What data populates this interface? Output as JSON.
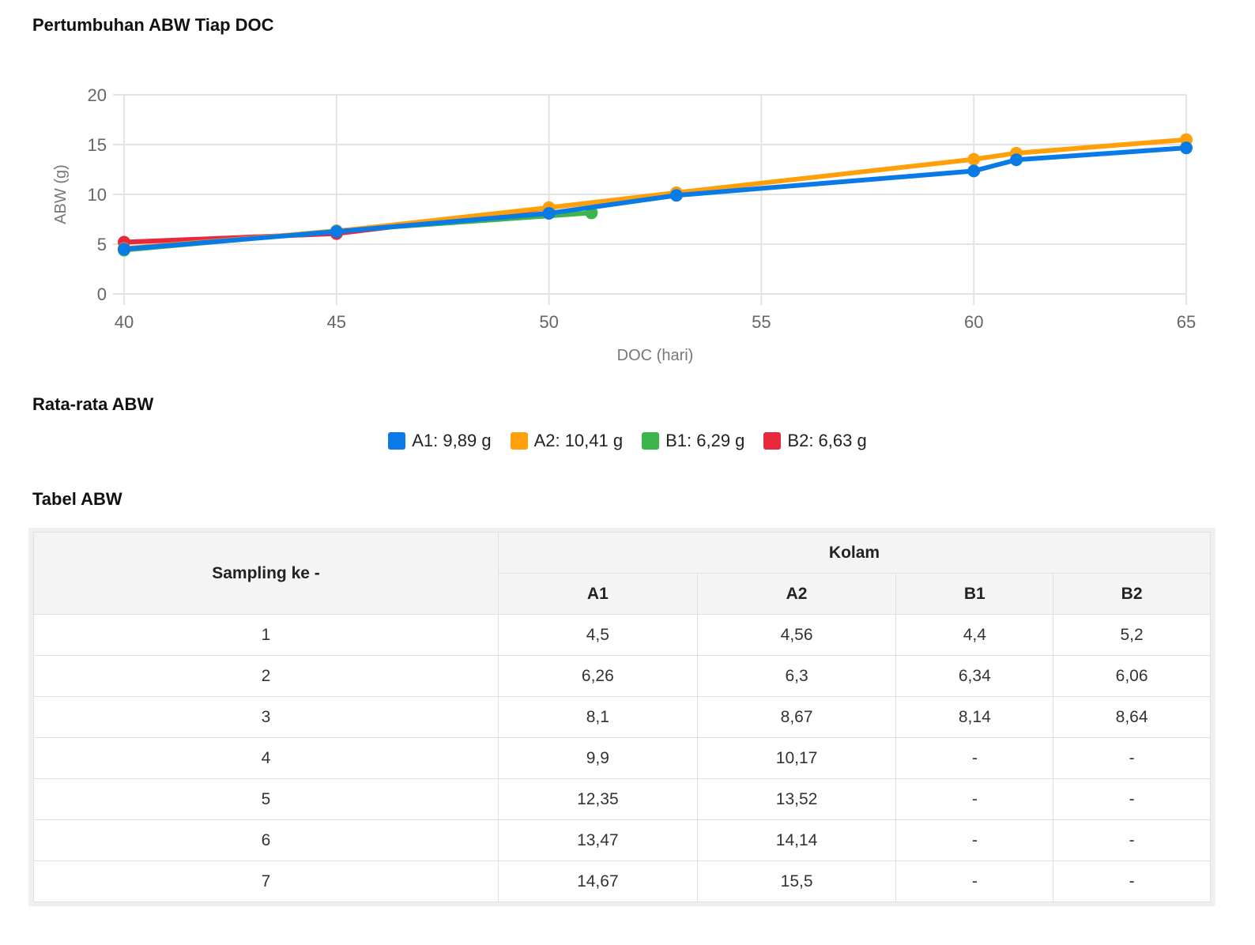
{
  "headings": {
    "chart": "Pertumbuhan ABW Tiap DOC",
    "avg": "Rata-rata ABW",
    "table": "Tabel ABW"
  },
  "chart_data": {
    "type": "line",
    "xlabel": "DOC (hari)",
    "ylabel": "ABW (g)",
    "xlim": [
      40,
      65
    ],
    "ylim": [
      0,
      20
    ],
    "xticks": [
      40,
      45,
      50,
      55,
      60,
      65
    ],
    "yticks": [
      0,
      5,
      10,
      15,
      20
    ],
    "grid": true,
    "series": [
      {
        "name": "B2",
        "color": "#e8283c",
        "x": [
          40,
          45,
          50
        ],
        "y": [
          5.2,
          6.06,
          8.64
        ]
      },
      {
        "name": "B1",
        "color": "#3cb54a",
        "x": [
          40,
          45,
          51
        ],
        "y": [
          4.4,
          6.34,
          8.14
        ]
      },
      {
        "name": "A2",
        "color": "#ff9f0a",
        "x": [
          40,
          45,
          50,
          53,
          60,
          61,
          65
        ],
        "y": [
          4.56,
          6.3,
          8.67,
          10.17,
          13.52,
          14.14,
          15.5
        ]
      },
      {
        "name": "A1",
        "color": "#0a7be6",
        "x": [
          40,
          45,
          50,
          53,
          60,
          61,
          65
        ],
        "y": [
          4.5,
          6.26,
          8.1,
          9.9,
          12.35,
          13.47,
          14.67
        ]
      }
    ]
  },
  "legend": [
    {
      "label": "A1: 9,89 g",
      "color": "#0a7be6"
    },
    {
      "label": "A2: 10,41 g",
      "color": "#ff9f0a"
    },
    {
      "label": "B1: 6,29 g",
      "color": "#3cb54a"
    },
    {
      "label": "B2: 6,63 g",
      "color": "#e8283c"
    }
  ],
  "table": {
    "row_header": "Sampling ke -",
    "group_header": "Kolam",
    "columns": [
      "A1",
      "A2",
      "B1",
      "B2"
    ],
    "rows": [
      [
        "1",
        "4,5",
        "4,56",
        "4,4",
        "5,2"
      ],
      [
        "2",
        "6,26",
        "6,3",
        "6,34",
        "6,06"
      ],
      [
        "3",
        "8,1",
        "8,67",
        "8,14",
        "8,64"
      ],
      [
        "4",
        "9,9",
        "10,17",
        "-",
        "-"
      ],
      [
        "5",
        "12,35",
        "13,52",
        "-",
        "-"
      ],
      [
        "6",
        "13,47",
        "14,14",
        "-",
        "-"
      ],
      [
        "7",
        "14,67",
        "15,5",
        "-",
        "-"
      ]
    ]
  }
}
